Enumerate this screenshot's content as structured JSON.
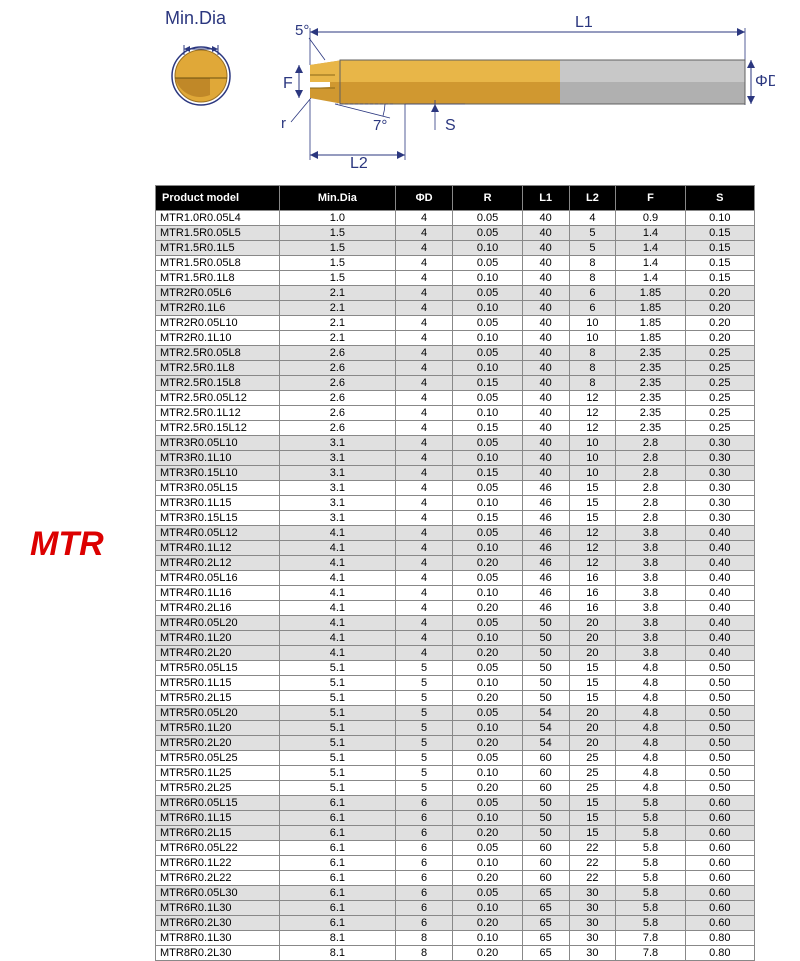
{
  "labels": {
    "mtr": "MTR",
    "minDia": "Min.Dia",
    "angle5": "5°",
    "angle7": "7°",
    "L1": "L1",
    "L2": "L2",
    "F": "F",
    "r": "r",
    "S": "S",
    "phiD": "ΦD"
  },
  "colors": {
    "brand_red": "#dc0000",
    "header_bg": "#000000",
    "header_fg": "#ffffff",
    "shade_bg": "#e0e0e0",
    "dim_color": "#2b377f",
    "tool_gold": "#e0a838",
    "tool_grey": "#a8a8a8",
    "tool_dark": "#6a6a6a"
  },
  "table": {
    "columns": [
      "Product model",
      "Min.Dia",
      "ΦD",
      "R",
      "L1",
      "L2",
      "F",
      "S"
    ],
    "rows": [
      {
        "g": 0,
        "c": [
          "MTR1.0R0.05L4",
          "1.0",
          "4",
          "0.05",
          "40",
          "4",
          "0.9",
          "0.10"
        ]
      },
      {
        "g": 1,
        "c": [
          "MTR1.5R0.05L5",
          "1.5",
          "4",
          "0.05",
          "40",
          "5",
          "1.4",
          "0.15"
        ]
      },
      {
        "g": 1,
        "c": [
          "MTR1.5R0.1L5",
          "1.5",
          "4",
          "0.10",
          "40",
          "5",
          "1.4",
          "0.15"
        ]
      },
      {
        "g": 2,
        "c": [
          "MTR1.5R0.05L8",
          "1.5",
          "4",
          "0.05",
          "40",
          "8",
          "1.4",
          "0.15"
        ]
      },
      {
        "g": 2,
        "c": [
          "MTR1.5R0.1L8",
          "1.5",
          "4",
          "0.10",
          "40",
          "8",
          "1.4",
          "0.15"
        ]
      },
      {
        "g": 3,
        "c": [
          "MTR2R0.05L6",
          "2.1",
          "4",
          "0.05",
          "40",
          "6",
          "1.85",
          "0.20"
        ]
      },
      {
        "g": 3,
        "c": [
          "MTR2R0.1L6",
          "2.1",
          "4",
          "0.10",
          "40",
          "6",
          "1.85",
          "0.20"
        ]
      },
      {
        "g": 4,
        "c": [
          "MTR2R0.05L10",
          "2.1",
          "4",
          "0.05",
          "40",
          "10",
          "1.85",
          "0.20"
        ]
      },
      {
        "g": 4,
        "c": [
          "MTR2R0.1L10",
          "2.1",
          "4",
          "0.10",
          "40",
          "10",
          "1.85",
          "0.20"
        ]
      },
      {
        "g": 5,
        "c": [
          "MTR2.5R0.05L8",
          "2.6",
          "4",
          "0.05",
          "40",
          "8",
          "2.35",
          "0.25"
        ]
      },
      {
        "g": 5,
        "c": [
          "MTR2.5R0.1L8",
          "2.6",
          "4",
          "0.10",
          "40",
          "8",
          "2.35",
          "0.25"
        ]
      },
      {
        "g": 5,
        "c": [
          "MTR2.5R0.15L8",
          "2.6",
          "4",
          "0.15",
          "40",
          "8",
          "2.35",
          "0.25"
        ]
      },
      {
        "g": 6,
        "c": [
          "MTR2.5R0.05L12",
          "2.6",
          "4",
          "0.05",
          "40",
          "12",
          "2.35",
          "0.25"
        ]
      },
      {
        "g": 6,
        "c": [
          "MTR2.5R0.1L12",
          "2.6",
          "4",
          "0.10",
          "40",
          "12",
          "2.35",
          "0.25"
        ]
      },
      {
        "g": 6,
        "c": [
          "MTR2.5R0.15L12",
          "2.6",
          "4",
          "0.15",
          "40",
          "12",
          "2.35",
          "0.25"
        ]
      },
      {
        "g": 7,
        "c": [
          "MTR3R0.05L10",
          "3.1",
          "4",
          "0.05",
          "40",
          "10",
          "2.8",
          "0.30"
        ]
      },
      {
        "g": 7,
        "c": [
          "MTR3R0.1L10",
          "3.1",
          "4",
          "0.10",
          "40",
          "10",
          "2.8",
          "0.30"
        ]
      },
      {
        "g": 7,
        "c": [
          "MTR3R0.15L10",
          "3.1",
          "4",
          "0.15",
          "40",
          "10",
          "2.8",
          "0.30"
        ]
      },
      {
        "g": 8,
        "c": [
          "MTR3R0.05L15",
          "3.1",
          "4",
          "0.05",
          "46",
          "15",
          "2.8",
          "0.30"
        ]
      },
      {
        "g": 8,
        "c": [
          "MTR3R0.1L15",
          "3.1",
          "4",
          "0.10",
          "46",
          "15",
          "2.8",
          "0.30"
        ]
      },
      {
        "g": 8,
        "c": [
          "MTR3R0.15L15",
          "3.1",
          "4",
          "0.15",
          "46",
          "15",
          "2.8",
          "0.30"
        ]
      },
      {
        "g": 9,
        "c": [
          "MTR4R0.05L12",
          "4.1",
          "4",
          "0.05",
          "46",
          "12",
          "3.8",
          "0.40"
        ]
      },
      {
        "g": 9,
        "c": [
          "MTR4R0.1L12",
          "4.1",
          "4",
          "0.10",
          "46",
          "12",
          "3.8",
          "0.40"
        ]
      },
      {
        "g": 9,
        "c": [
          "MTR4R0.2L12",
          "4.1",
          "4",
          "0.20",
          "46",
          "12",
          "3.8",
          "0.40"
        ]
      },
      {
        "g": 10,
        "c": [
          "MTR4R0.05L16",
          "4.1",
          "4",
          "0.05",
          "46",
          "16",
          "3.8",
          "0.40"
        ]
      },
      {
        "g": 10,
        "c": [
          "MTR4R0.1L16",
          "4.1",
          "4",
          "0.10",
          "46",
          "16",
          "3.8",
          "0.40"
        ]
      },
      {
        "g": 10,
        "c": [
          "MTR4R0.2L16",
          "4.1",
          "4",
          "0.20",
          "46",
          "16",
          "3.8",
          "0.40"
        ]
      },
      {
        "g": 11,
        "c": [
          "MTR4R0.05L20",
          "4.1",
          "4",
          "0.05",
          "50",
          "20",
          "3.8",
          "0.40"
        ]
      },
      {
        "g": 11,
        "c": [
          "MTR4R0.1L20",
          "4.1",
          "4",
          "0.10",
          "50",
          "20",
          "3.8",
          "0.40"
        ]
      },
      {
        "g": 11,
        "c": [
          "MTR4R0.2L20",
          "4.1",
          "4",
          "0.20",
          "50",
          "20",
          "3.8",
          "0.40"
        ]
      },
      {
        "g": 12,
        "c": [
          "MTR5R0.05L15",
          "5.1",
          "5",
          "0.05",
          "50",
          "15",
          "4.8",
          "0.50"
        ]
      },
      {
        "g": 12,
        "c": [
          "MTR5R0.1L15",
          "5.1",
          "5",
          "0.10",
          "50",
          "15",
          "4.8",
          "0.50"
        ]
      },
      {
        "g": 12,
        "c": [
          "MTR5R0.2L15",
          "5.1",
          "5",
          "0.20",
          "50",
          "15",
          "4.8",
          "0.50"
        ]
      },
      {
        "g": 13,
        "c": [
          "MTR5R0.05L20",
          "5.1",
          "5",
          "0.05",
          "54",
          "20",
          "4.8",
          "0.50"
        ]
      },
      {
        "g": 13,
        "c": [
          "MTR5R0.1L20",
          "5.1",
          "5",
          "0.10",
          "54",
          "20",
          "4.8",
          "0.50"
        ]
      },
      {
        "g": 13,
        "c": [
          "MTR5R0.2L20",
          "5.1",
          "5",
          "0.20",
          "54",
          "20",
          "4.8",
          "0.50"
        ]
      },
      {
        "g": 14,
        "c": [
          "MTR5R0.05L25",
          "5.1",
          "5",
          "0.05",
          "60",
          "25",
          "4.8",
          "0.50"
        ]
      },
      {
        "g": 14,
        "c": [
          "MTR5R0.1L25",
          "5.1",
          "5",
          "0.10",
          "60",
          "25",
          "4.8",
          "0.50"
        ]
      },
      {
        "g": 14,
        "c": [
          "MTR5R0.2L25",
          "5.1",
          "5",
          "0.20",
          "60",
          "25",
          "4.8",
          "0.50"
        ]
      },
      {
        "g": 15,
        "c": [
          "MTR6R0.05L15",
          "6.1",
          "6",
          "0.05",
          "50",
          "15",
          "5.8",
          "0.60"
        ]
      },
      {
        "g": 15,
        "c": [
          "MTR6R0.1L15",
          "6.1",
          "6",
          "0.10",
          "50",
          "15",
          "5.8",
          "0.60"
        ]
      },
      {
        "g": 15,
        "c": [
          "MTR6R0.2L15",
          "6.1",
          "6",
          "0.20",
          "50",
          "15",
          "5.8",
          "0.60"
        ]
      },
      {
        "g": 16,
        "c": [
          "MTR6R0.05L22",
          "6.1",
          "6",
          "0.05",
          "60",
          "22",
          "5.8",
          "0.60"
        ]
      },
      {
        "g": 16,
        "c": [
          "MTR6R0.1L22",
          "6.1",
          "6",
          "0.10",
          "60",
          "22",
          "5.8",
          "0.60"
        ]
      },
      {
        "g": 16,
        "c": [
          "MTR6R0.2L22",
          "6.1",
          "6",
          "0.20",
          "60",
          "22",
          "5.8",
          "0.60"
        ]
      },
      {
        "g": 17,
        "c": [
          "MTR6R0.05L30",
          "6.1",
          "6",
          "0.05",
          "65",
          "30",
          "5.8",
          "0.60"
        ]
      },
      {
        "g": 17,
        "c": [
          "MTR6R0.1L30",
          "6.1",
          "6",
          "0.10",
          "65",
          "30",
          "5.8",
          "0.60"
        ]
      },
      {
        "g": 17,
        "c": [
          "MTR6R0.2L30",
          "6.1",
          "6",
          "0.20",
          "65",
          "30",
          "5.8",
          "0.60"
        ]
      },
      {
        "g": 18,
        "c": [
          "MTR8R0.1L30",
          "8.1",
          "8",
          "0.10",
          "65",
          "30",
          "7.8",
          "0.80"
        ]
      },
      {
        "g": 18,
        "c": [
          "MTR8R0.2L30",
          "8.1",
          "8",
          "0.20",
          "65",
          "30",
          "7.8",
          "0.80"
        ]
      }
    ]
  }
}
